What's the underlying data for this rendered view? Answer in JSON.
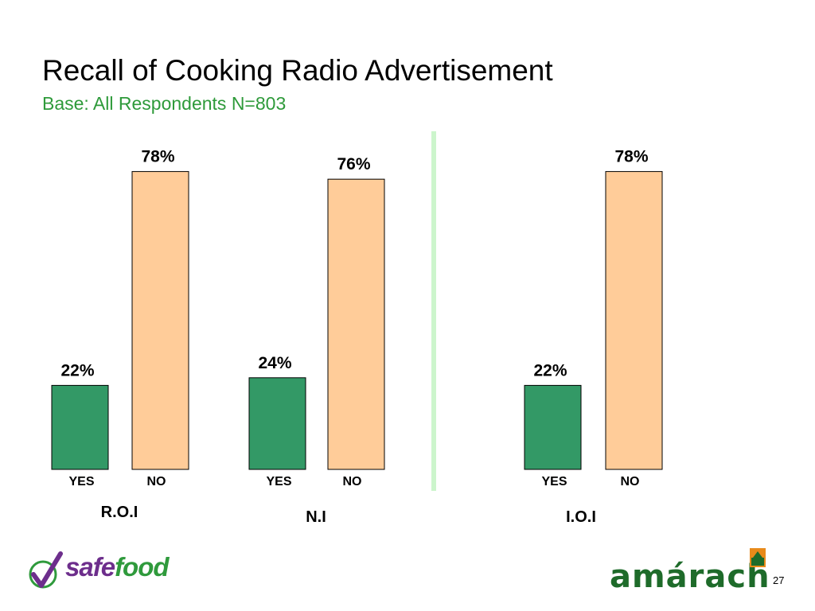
{
  "slide": {
    "title": "Recall of Cooking Radio Advertisement",
    "subtitle": "Base: All Respondents N=803",
    "page_number": "27"
  },
  "logos": {
    "left": {
      "part1": "safe",
      "part2": "food"
    },
    "right": {
      "text": "amárach"
    }
  },
  "colors": {
    "yes": "#339966",
    "no": "#FFCC99",
    "divider": "#ccf5cc",
    "subtitle": "#2e9a3a"
  },
  "chart_data": {
    "type": "bar",
    "title": "Recall of Cooking Radio Advertisement",
    "subtitle": "Base: All Respondents N=803",
    "groups": [
      "R.O.I",
      "N.I",
      "I.O.I"
    ],
    "categories": [
      "YES",
      "NO"
    ],
    "values": {
      "R.O.I": [
        22,
        78
      ],
      "N.I": [
        24,
        76
      ],
      "I.O.I": [
        22,
        78
      ]
    },
    "value_labels": {
      "R.O.I": [
        "22%",
        "78%"
      ],
      "N.I": [
        "24%",
        "76%"
      ],
      "I.O.I": [
        "22%",
        "78%"
      ]
    },
    "unit": "%",
    "ylim": [
      0,
      100
    ],
    "grid": false,
    "legend": "none",
    "colors": {
      "YES": "#339966",
      "NO": "#FFCC99"
    }
  }
}
